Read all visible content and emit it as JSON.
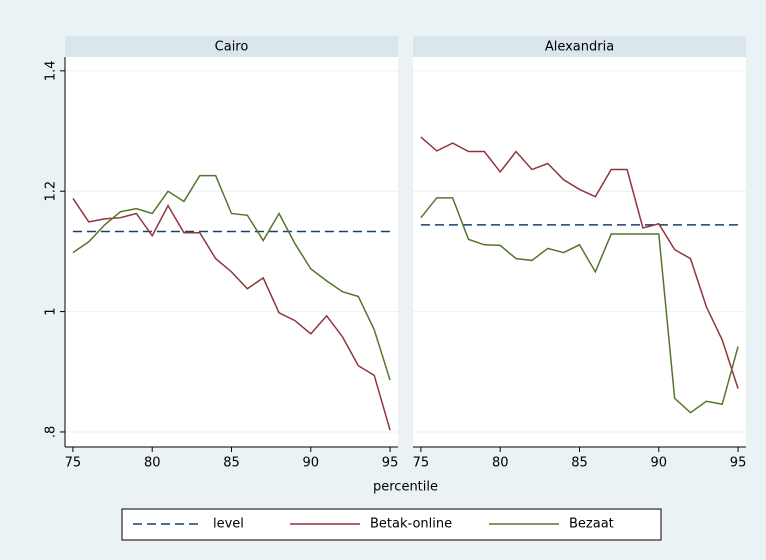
{
  "chart_data": [
    {
      "type": "line",
      "title": "Cairo",
      "xlabel": "percentile",
      "x": [
        75,
        76,
        77,
        78,
        79,
        80,
        81,
        82,
        83,
        84,
        85,
        86,
        87,
        88,
        89,
        90,
        91,
        92,
        93,
        94,
        95
      ],
      "xlim": [
        74.5,
        95.5
      ],
      "xticks": [
        75,
        80,
        85,
        90,
        95
      ],
      "ylim": [
        0.775,
        1.423
      ],
      "yticks": [
        {
          "value": 0.8,
          "label": ".8"
        },
        1,
        1.2,
        1.4
      ],
      "grid": true,
      "series": [
        {
          "name": "level",
          "color": "#1a3f6b",
          "dash": true,
          "values": [
            1.133,
            1.133,
            1.133,
            1.133,
            1.133,
            1.133,
            1.133,
            1.133,
            1.133,
            1.133,
            1.133,
            1.133,
            1.133,
            1.133,
            1.133,
            1.133,
            1.133,
            1.133,
            1.133,
            1.133,
            1.133
          ]
        },
        {
          "name": "Betak-online",
          "color": "#90353b",
          "values": [
            1.188,
            1.149,
            1.154,
            1.156,
            1.163,
            1.126,
            1.176,
            1.131,
            1.131,
            1.088,
            1.066,
            1.038,
            1.056,
            0.998,
            0.985,
            0.963,
            0.993,
            0.958,
            0.91,
            0.894,
            0.803
          ]
        },
        {
          "name": "Bezaat",
          "color": "#55752f",
          "values": [
            1.098,
            1.116,
            1.144,
            1.166,
            1.171,
            1.163,
            1.2,
            1.183,
            1.226,
            1.226,
            1.163,
            1.16,
            1.118,
            1.163,
            1.113,
            1.071,
            1.051,
            1.033,
            1.025,
            0.97,
            0.886
          ]
        }
      ]
    },
    {
      "type": "line",
      "title": "Alexandria",
      "x": [
        75,
        76,
        77,
        78,
        79,
        80,
        81,
        82,
        83,
        84,
        85,
        86,
        87,
        88,
        89,
        90,
        91,
        92,
        93,
        94,
        95
      ],
      "xlim": [
        74.5,
        95.5
      ],
      "xticks": [
        75,
        80,
        85,
        90,
        95
      ],
      "ylim": [
        0.775,
        1.423
      ],
      "yticks": [
        {
          "value": 0.8,
          "label": ".8"
        },
        1,
        1.2,
        1.4
      ],
      "grid": true,
      "series": [
        {
          "name": "level",
          "color": "#1a3f6b",
          "dash": true,
          "values": [
            1.144,
            1.144,
            1.144,
            1.144,
            1.144,
            1.144,
            1.144,
            1.144,
            1.144,
            1.144,
            1.144,
            1.144,
            1.144,
            1.144,
            1.144,
            1.144,
            1.144,
            1.144,
            1.144,
            1.144,
            1.144
          ]
        },
        {
          "name": "Betak-online",
          "color": "#90353b",
          "values": [
            1.29,
            1.267,
            1.28,
            1.266,
            1.266,
            1.232,
            1.266,
            1.236,
            1.246,
            1.219,
            1.203,
            1.191,
            1.236,
            1.236,
            1.139,
            1.146,
            1.103,
            1.088,
            1.008,
            0.953,
            0.872
          ]
        },
        {
          "name": "Bezaat",
          "color": "#55752f",
          "values": [
            1.156,
            1.189,
            1.189,
            1.12,
            1.111,
            1.11,
            1.088,
            1.085,
            1.105,
            1.098,
            1.111,
            1.066,
            1.129,
            1.129,
            1.129,
            1.129,
            0.856,
            0.832,
            0.851,
            0.846,
            0.942
          ]
        }
      ]
    }
  ]
}
